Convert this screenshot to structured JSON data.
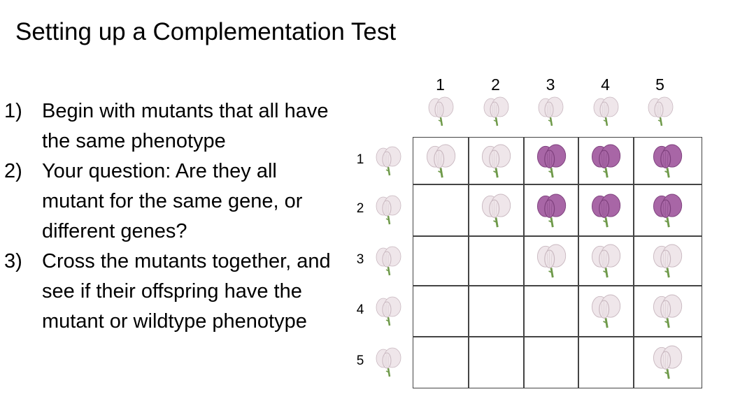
{
  "title": "Setting up a Complementation Test",
  "steps": [
    {
      "num": "1)",
      "text": "Begin with mutants that all have the same phenotype"
    },
    {
      "num": "2)",
      "text": "Your question: Are they all mutant for the same gene, or different genes?"
    },
    {
      "num": "3)",
      "text": "Cross the mutants together, and see if their offspring have the mutant or wildtype phenotype"
    }
  ],
  "columns": [
    "1",
    "2",
    "3",
    "4",
    "5"
  ],
  "rows": [
    "1",
    "2",
    "3",
    "4",
    "5"
  ],
  "parent_phenotype": "white",
  "grid": [
    [
      "white",
      "white",
      "purple",
      "purple",
      "purple"
    ],
    [
      "",
      "white",
      "purple",
      "purple",
      "purple"
    ],
    [
      "",
      "",
      "white",
      "white",
      "white"
    ],
    [
      "",
      "",
      "",
      "white",
      "white"
    ],
    [
      "",
      "",
      "",
      "",
      "white"
    ]
  ],
  "colors": {
    "white": "#efe6ea",
    "purple": "#a866a6",
    "stem": "#6f9a4a"
  }
}
